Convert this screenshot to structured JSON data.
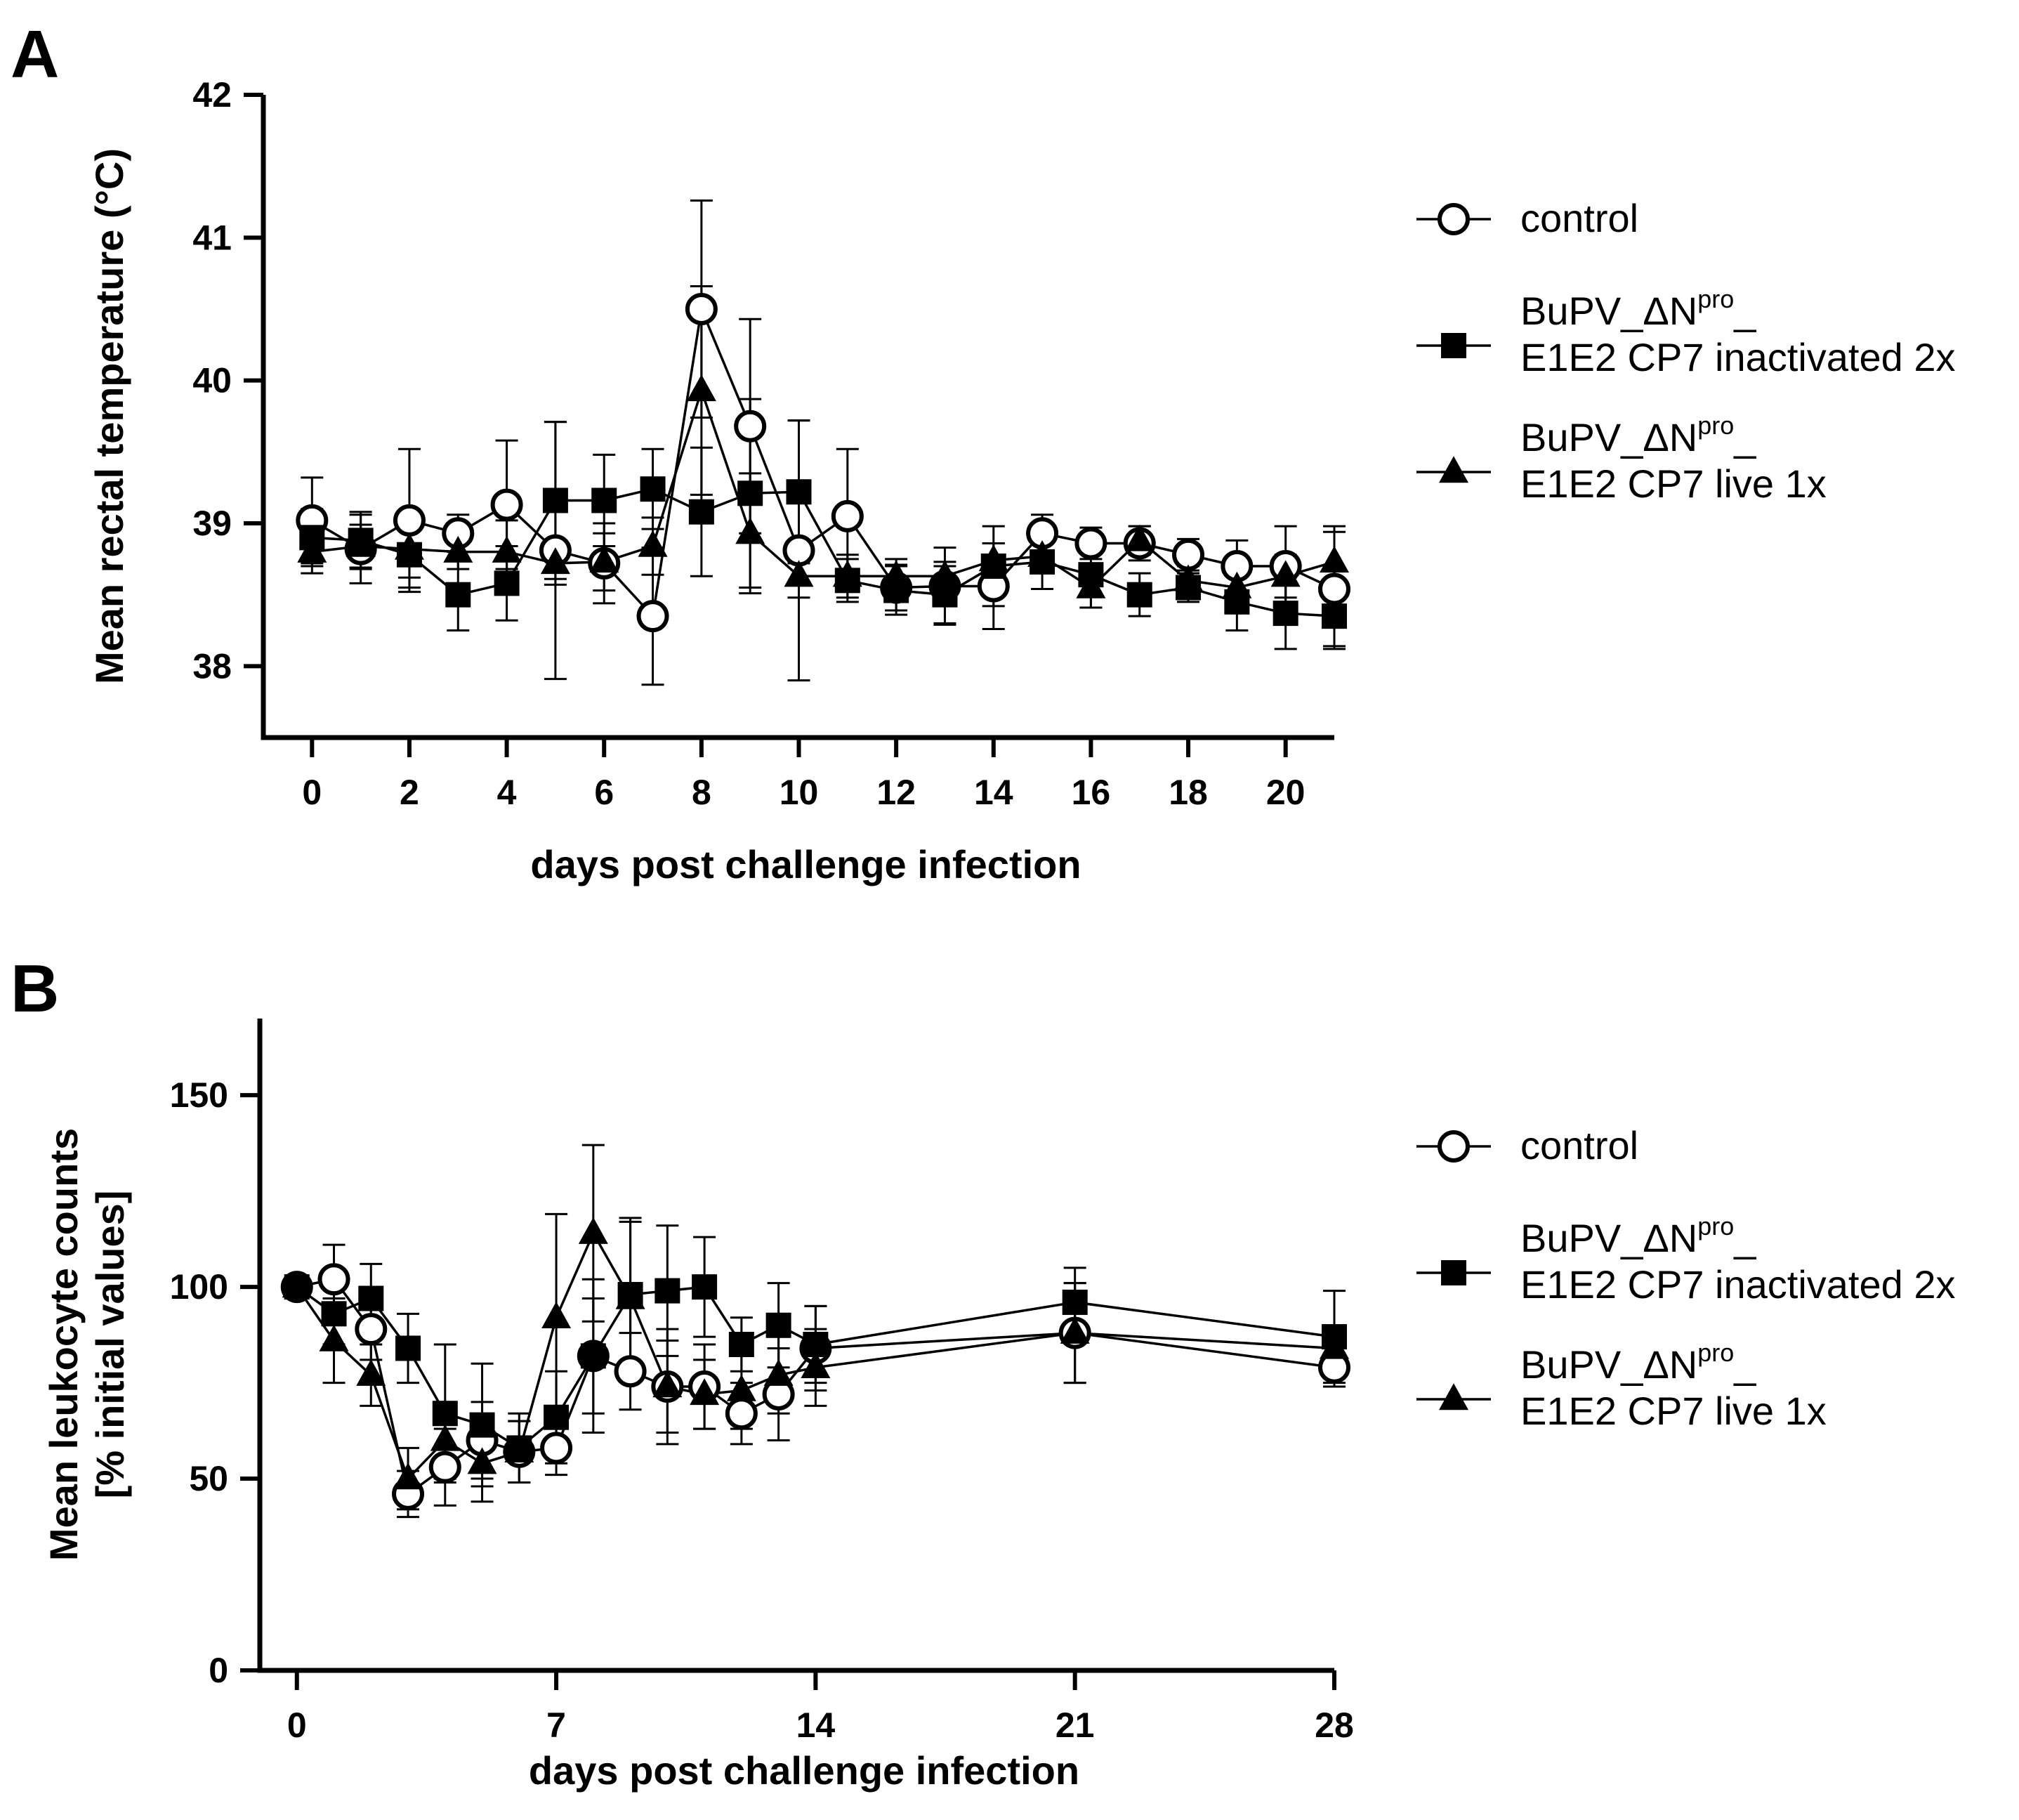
{
  "chart_data": [
    {
      "panel_label": "A",
      "type": "line",
      "xlabel": "days post challenge infection",
      "ylabel": "Mean rectal temperature (°C)",
      "xlim": [
        -1,
        21
      ],
      "ylim": [
        37.5,
        42
      ],
      "xticks": [
        0,
        2,
        4,
        6,
        8,
        10,
        12,
        14,
        16,
        18,
        20
      ],
      "yticks": [
        38,
        39,
        40,
        41,
        42
      ],
      "legend_position": "right",
      "x": [
        0,
        1,
        2,
        3,
        4,
        5,
        6,
        7,
        8,
        9,
        10,
        11,
        12,
        13,
        14,
        15,
        16,
        17,
        18,
        19,
        20,
        21
      ],
      "series": [
        {
          "name": "control",
          "marker": "circle-open",
          "values": [
            39.02,
            38.82,
            39.02,
            38.93,
            39.13,
            38.81,
            38.72,
            38.35,
            40.5,
            39.68,
            38.81,
            39.05,
            38.55,
            38.56,
            38.56,
            38.93,
            38.86,
            38.86,
            38.78,
            38.7,
            38.7,
            38.54
          ],
          "errors": [
            0.3,
            0.24,
            0.5,
            0.13,
            0.45,
            0.9,
            0.28,
            0.48,
            0.76,
            0.75,
            0.91,
            0.47,
            0.16,
            0.27,
            0.3,
            0.13,
            0.11,
            0.12,
            0.11,
            0.18,
            0.28,
            0.4
          ]
        },
        {
          "name": "BuPV_ΔN^pro_ E1E2 CP7 inactivated 2x",
          "name_lines": [
            "BuPV_ΔN",
            "pro",
            "_",
            "E1E2 CP7 inactivated 2x"
          ],
          "marker": "square-filled",
          "values": [
            38.9,
            38.88,
            38.78,
            38.5,
            38.58,
            39.16,
            39.16,
            39.24,
            39.08,
            39.21,
            39.22,
            38.6,
            38.53,
            38.5,
            38.7,
            38.73,
            38.64,
            38.5,
            38.55,
            38.45,
            38.37,
            38.35
          ],
          "errors": [
            0.2,
            0.2,
            0.23,
            0.25,
            0.26,
            0.55,
            0.32,
            0.28,
            0.45,
            0.66,
            0.5,
            0.15,
            0.17,
            0.2,
            0.28,
            0.19,
            0.23,
            0.15,
            0.1,
            0.2,
            0.25,
            0.23
          ]
        },
        {
          "name": "BuPV_ΔN^pro_ E1E2 CP7 live 1x",
          "name_lines": [
            "BuPV_ΔN",
            "pro",
            "_",
            "E1E2 CP7 live 1x"
          ],
          "marker": "triangle-filled",
          "values": [
            38.8,
            38.84,
            38.82,
            38.8,
            38.8,
            38.72,
            38.73,
            38.84,
            39.93,
            38.93,
            38.63,
            38.63,
            38.63,
            38.63,
            38.74,
            38.77,
            38.55,
            38.88,
            38.6,
            38.55,
            38.63,
            38.73
          ],
          "errors": [
            0.15,
            0.15,
            0.2,
            0.12,
            0.22,
            0.15,
            0.2,
            0.2,
            0.73,
            0.42,
            0.15,
            0.15,
            0.12,
            0.1,
            0.12,
            0.12,
            0.14,
            0.1,
            0.1,
            0.12,
            0.15,
            0.25
          ]
        }
      ]
    },
    {
      "panel_label": "B",
      "type": "line",
      "xlabel": "days post challenge infection",
      "ylabel": "Mean leukocyte counts [% initial values]",
      "ylabel_lines": [
        "Mean leukocyte counts",
        "[% initial values]"
      ],
      "xlim": [
        -1,
        28
      ],
      "ylim": [
        0,
        170
      ],
      "xticks": [
        0,
        7,
        14,
        21,
        28
      ],
      "yticks": [
        0,
        50,
        100,
        150
      ],
      "legend_position": "right",
      "x": [
        0,
        1,
        2,
        3,
        4,
        5,
        6,
        7,
        8,
        9,
        10,
        11,
        12,
        13,
        14,
        21,
        28
      ],
      "series": [
        {
          "name": "control",
          "marker": "circle-open",
          "values": [
            100,
            102,
            89,
            46,
            53,
            60,
            57,
            58,
            82,
            78,
            74,
            74,
            67,
            72,
            84,
            88,
            79
          ],
          "errors": [
            3,
            9,
            8,
            6,
            10,
            10,
            8,
            7,
            15,
            10,
            15,
            11,
            8,
            12,
            11,
            13,
            5
          ]
        },
        {
          "name": "BuPV_ΔN^pro_ E1E2 CP7 inactivated 2x",
          "name_lines": [
            "BuPV_ΔN",
            "pro",
            "_",
            "E1E2 CP7 inactivated 2x"
          ],
          "marker": "square-filled",
          "values": [
            100,
            93,
            97,
            84,
            67,
            64,
            58,
            66,
            82,
            98,
            99,
            100,
            85,
            90,
            85,
            96,
            87
          ],
          "errors": [
            3,
            8,
            9,
            9,
            18,
            16,
            9,
            12,
            20,
            20,
            17,
            13,
            7,
            11,
            10,
            9,
            12
          ]
        },
        {
          "name": "BuPV_ΔN^pro_ E1E2 CP7 live 1x",
          "name_lines": [
            "BuPV_ΔN",
            "pro",
            "_",
            "E1E2 CP7 live 1x"
          ],
          "marker": "triangle-filled",
          "values": [
            100,
            86,
            77,
            50,
            60,
            54,
            57,
            92,
            114,
            97,
            74,
            72,
            73,
            77,
            79,
            88,
            84
          ],
          "errors": [
            3,
            11,
            8,
            8,
            10,
            10,
            8,
            27,
            23,
            20,
            12,
            9,
            10,
            10,
            10,
            13,
            5
          ]
        }
      ]
    }
  ]
}
